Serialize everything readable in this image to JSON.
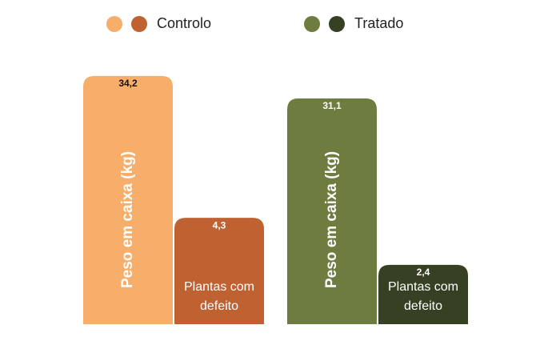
{
  "chart_data": {
    "type": "bar",
    "categories": [
      "Controlo",
      "Tratado"
    ],
    "series": [
      {
        "name": "Peso em caixa (kg)",
        "values": [
          34.2,
          31.1
        ],
        "value_labels": [
          "34,2",
          "31,1"
        ],
        "colors": [
          "#f6ae6a",
          "#6f7c3f"
        ],
        "ylim": [
          0,
          37.5
        ]
      },
      {
        "name": "Plantas com defeito",
        "values": [
          4.3,
          2.4
        ],
        "value_labels": [
          "4,3",
          "2,4"
        ],
        "colors": [
          "#bf6131",
          "#364022"
        ],
        "ylim": [
          0,
          11
        ]
      }
    ]
  }
}
